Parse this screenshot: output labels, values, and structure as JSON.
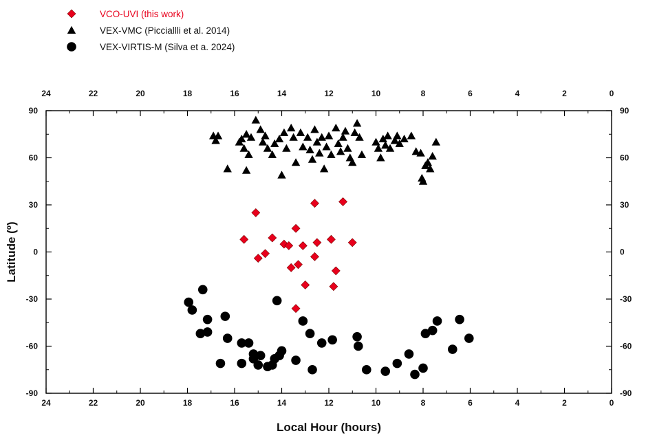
{
  "chart_data": {
    "type": "scatter",
    "xlabel": "Local Hour (hours)",
    "ylabel": "Latitude (º)",
    "xlim": [
      24,
      0
    ],
    "ylim": [
      -90,
      90
    ],
    "x_reversed": true,
    "x_ticks": [
      24,
      22,
      20,
      18,
      16,
      14,
      12,
      10,
      8,
      6,
      4,
      2,
      0
    ],
    "y_ticks": [
      90,
      60,
      30,
      0,
      -30,
      -60,
      -90
    ],
    "grid": false,
    "legend_position": "top-left",
    "series": [
      {
        "name": "VCO-UVI (this work)",
        "marker": "diamond",
        "color": "#e8001c",
        "points": [
          [
            15.6,
            8
          ],
          [
            15.1,
            25
          ],
          [
            15.0,
            -4
          ],
          [
            14.7,
            -1
          ],
          [
            14.4,
            9
          ],
          [
            13.9,
            5
          ],
          [
            13.7,
            4
          ],
          [
            13.6,
            -10
          ],
          [
            13.4,
            15
          ],
          [
            13.3,
            -8
          ],
          [
            13.1,
            4
          ],
          [
            13.0,
            -21
          ],
          [
            13.4,
            -36
          ],
          [
            12.6,
            31
          ],
          [
            12.6,
            -3
          ],
          [
            12.5,
            6
          ],
          [
            11.9,
            8
          ],
          [
            11.8,
            -22
          ],
          [
            11.7,
            -12
          ],
          [
            11.4,
            32
          ],
          [
            11.0,
            6
          ]
        ]
      },
      {
        "name": "VEX-VMC (Picciallli et al. 2014)",
        "marker": "triangle",
        "color": "#000000",
        "points": [
          [
            16.9,
            74
          ],
          [
            16.8,
            71
          ],
          [
            16.7,
            74
          ],
          [
            16.3,
            53
          ],
          [
            15.8,
            70
          ],
          [
            15.7,
            72
          ],
          [
            15.6,
            66
          ],
          [
            15.5,
            75
          ],
          [
            15.5,
            52
          ],
          [
            15.4,
            62
          ],
          [
            15.3,
            73
          ],
          [
            15.1,
            84
          ],
          [
            14.9,
            78
          ],
          [
            14.8,
            70
          ],
          [
            14.7,
            74
          ],
          [
            14.6,
            66
          ],
          [
            14.4,
            62
          ],
          [
            14.3,
            69
          ],
          [
            14.1,
            72
          ],
          [
            14.0,
            49
          ],
          [
            13.9,
            76
          ],
          [
            13.8,
            66
          ],
          [
            13.6,
            79
          ],
          [
            13.5,
            73
          ],
          [
            13.4,
            57
          ],
          [
            13.2,
            76
          ],
          [
            13.1,
            67
          ],
          [
            12.9,
            73
          ],
          [
            12.8,
            65
          ],
          [
            12.7,
            59
          ],
          [
            12.6,
            78
          ],
          [
            12.5,
            70
          ],
          [
            12.4,
            63
          ],
          [
            12.3,
            73
          ],
          [
            12.2,
            53
          ],
          [
            12.1,
            67
          ],
          [
            12.0,
            74
          ],
          [
            11.9,
            62
          ],
          [
            11.7,
            79
          ],
          [
            11.6,
            69
          ],
          [
            11.5,
            64
          ],
          [
            11.4,
            73
          ],
          [
            11.3,
            77
          ],
          [
            11.2,
            66
          ],
          [
            11.1,
            60
          ],
          [
            11.0,
            57
          ],
          [
            10.9,
            76
          ],
          [
            10.8,
            82
          ],
          [
            10.7,
            73
          ],
          [
            10.6,
            62
          ],
          [
            10.0,
            70
          ],
          [
            9.9,
            66
          ],
          [
            9.8,
            60
          ],
          [
            9.7,
            72
          ],
          [
            9.6,
            68
          ],
          [
            9.5,
            74
          ],
          [
            9.4,
            66
          ],
          [
            9.2,
            71
          ],
          [
            9.1,
            74
          ],
          [
            9.0,
            69
          ],
          [
            8.8,
            72
          ],
          [
            8.5,
            74
          ],
          [
            8.3,
            64
          ],
          [
            8.1,
            63
          ],
          [
            8.05,
            47
          ],
          [
            8.0,
            45
          ],
          [
            7.9,
            55
          ],
          [
            7.8,
            57
          ],
          [
            7.7,
            53
          ],
          [
            7.6,
            61
          ],
          [
            7.45,
            70
          ]
        ]
      },
      {
        "name": "VEX-VIRTIS-M (Silva et a. 2024)",
        "marker": "circle",
        "color": "#000000",
        "points": [
          [
            17.95,
            -32
          ],
          [
            17.8,
            -37
          ],
          [
            17.45,
            -52
          ],
          [
            17.35,
            -24
          ],
          [
            17.15,
            -51
          ],
          [
            17.15,
            -43
          ],
          [
            16.6,
            -71
          ],
          [
            16.4,
            -41
          ],
          [
            16.3,
            -55
          ],
          [
            15.7,
            -71
          ],
          [
            15.7,
            -58
          ],
          [
            15.4,
            -58
          ],
          [
            15.2,
            -65
          ],
          [
            15.2,
            -68
          ],
          [
            15.0,
            -72
          ],
          [
            14.9,
            -66
          ],
          [
            14.6,
            -73
          ],
          [
            14.4,
            -72
          ],
          [
            14.3,
            -68
          ],
          [
            14.2,
            -31
          ],
          [
            14.0,
            -63
          ],
          [
            14.1,
            -66
          ],
          [
            13.4,
            -69
          ],
          [
            13.1,
            -44
          ],
          [
            12.8,
            -52
          ],
          [
            12.7,
            -75
          ],
          [
            12.3,
            -58
          ],
          [
            11.85,
            -56
          ],
          [
            10.8,
            -54
          ],
          [
            10.75,
            -60
          ],
          [
            10.4,
            -75
          ],
          [
            9.6,
            -76
          ],
          [
            9.1,
            -71
          ],
          [
            8.6,
            -65
          ],
          [
            8.35,
            -78
          ],
          [
            8.0,
            -74
          ],
          [
            7.9,
            -52
          ],
          [
            7.6,
            -50
          ],
          [
            7.4,
            -44
          ],
          [
            6.75,
            -62
          ],
          [
            6.45,
            -43
          ],
          [
            6.05,
            -55
          ]
        ]
      }
    ]
  }
}
